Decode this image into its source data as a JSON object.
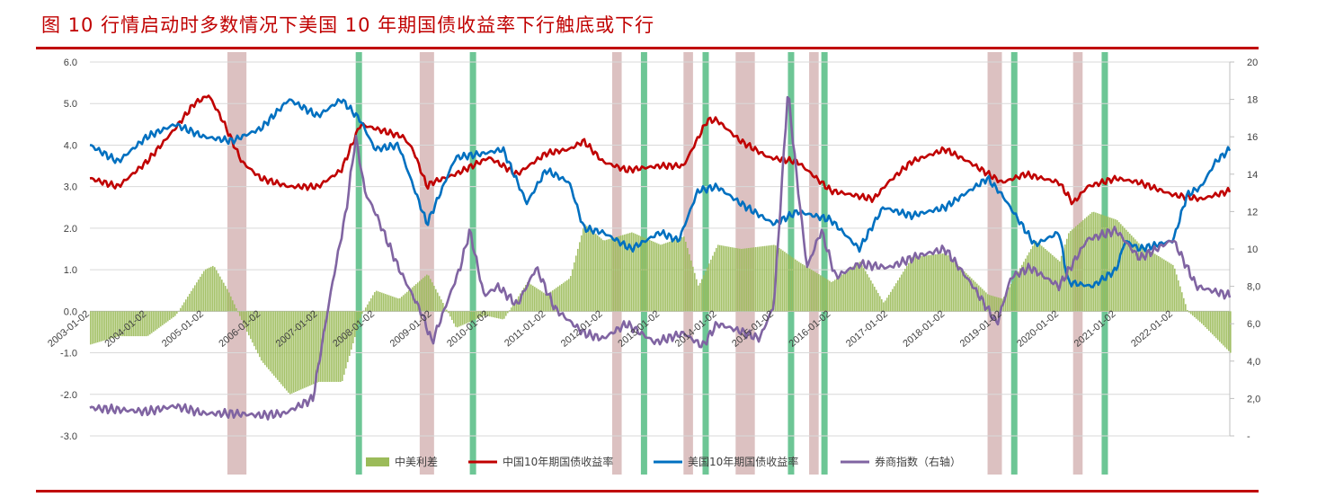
{
  "header": {
    "title": "图 10    行情启动时多数情况下美国 10 年期国债收益率下行触底或下行"
  },
  "colors": {
    "accent_red": "#c00000",
    "spread_fill": "#9bbb59",
    "cn_yield": "#c00000",
    "us_yield": "#0070c0",
    "broker_index": "#8064a2",
    "band_red": "#c9a0a0",
    "band_green": "#3cb371"
  },
  "chart_data": {
    "type": "line",
    "x_type": "date",
    "xlim": [
      "2003-01-02",
      "2022-12-31"
    ],
    "left_axis": {
      "ylim": [
        -3.0,
        6.0
      ],
      "ticks": [
        "6.0",
        "5.0",
        "4.0",
        "3.0",
        "2.0",
        "1.0",
        "0.0",
        "-1.0",
        "-2.0",
        "-3.0"
      ]
    },
    "right_axis": {
      "ylim": [
        0,
        20
      ],
      "ticks": [
        "20",
        "18",
        "16",
        "14",
        "12",
        "10",
        "8,0",
        "6,0",
        "4,0",
        "2,0",
        "-"
      ]
    },
    "x_ticks": [
      "2003-01-02",
      "2004-01-02",
      "2005-01-02",
      "2006-01-02",
      "2007-01-02",
      "2008-01-02",
      "2009-01-02",
      "2010-01-02",
      "2011-01-02",
      "2012-01-02",
      "2013-01-02",
      "2014-01-02",
      "2015-01-02",
      "2016-01-02",
      "2017-01-02",
      "2018-01-02",
      "2019-01-02",
      "2020-01-02",
      "2021-01-02",
      "2022-01-02"
    ],
    "grid": true,
    "legend_position": "bottom",
    "legend": [
      "中美利差",
      "中国10年期国债收益率",
      "美国10年期国债收益率",
      "券商指数（右轴）"
    ],
    "red_bands": [
      [
        "2005-06-01",
        "2005-10-01"
      ],
      [
        "2008-10-15",
        "2009-01-15"
      ],
      [
        "2012-03-01",
        "2012-05-01"
      ],
      [
        "2013-06-01",
        "2013-08-01"
      ],
      [
        "2014-05-01",
        "2014-09-01"
      ],
      [
        "2015-08-15",
        "2015-10-15"
      ],
      [
        "2018-10-01",
        "2019-01-01"
      ],
      [
        "2020-04-01",
        "2020-06-01"
      ]
    ],
    "green_bands": [
      [
        "2007-09-01",
        "2007-11-01"
      ],
      [
        "2009-09-01",
        "2009-11-01"
      ],
      [
        "2012-09-01",
        "2012-11-01"
      ],
      [
        "2013-10-01",
        "2013-12-01"
      ],
      [
        "2015-04-01",
        "2015-06-01"
      ],
      [
        "2015-11-01",
        "2016-01-01"
      ],
      [
        "2019-03-01",
        "2019-05-01"
      ],
      [
        "2020-10-01",
        "2020-12-01"
      ]
    ],
    "series": [
      {
        "name": "中国10年期国债收益率",
        "axis": "left",
        "x": [
          "2003-01-02",
          "2003-07-01",
          "2004-01-02",
          "2004-07-01",
          "2004-11-01",
          "2005-02-01",
          "2005-05-01",
          "2005-09-01",
          "2006-01-02",
          "2006-07-01",
          "2007-01-02",
          "2007-06-01",
          "2007-10-01",
          "2008-01-02",
          "2008-04-01",
          "2008-07-01",
          "2008-09-01",
          "2008-12-01",
          "2009-01-02",
          "2009-06-01",
          "2010-01-02",
          "2010-07-01",
          "2011-01-02",
          "2011-06-01",
          "2011-09-01",
          "2012-01-02",
          "2012-06-01",
          "2013-01-02",
          "2013-06-01",
          "2013-11-01",
          "2014-01-02",
          "2014-06-01",
          "2014-12-01",
          "2015-06-01",
          "2016-01-02",
          "2016-10-01",
          "2017-01-02",
          "2017-06-01",
          "2018-01-02",
          "2018-06-01",
          "2019-01-02",
          "2019-06-01",
          "2020-01-02",
          "2020-04-01",
          "2020-07-01",
          "2021-01-02",
          "2021-06-01",
          "2022-01-02",
          "2022-07-01",
          "2022-12-31"
        ],
        "values": [
          3.2,
          3.0,
          3.6,
          4.4,
          5.0,
          5.2,
          4.6,
          3.6,
          3.2,
          3.0,
          3.0,
          3.4,
          4.5,
          4.4,
          4.3,
          4.2,
          3.9,
          3.0,
          3.1,
          3.3,
          3.7,
          3.3,
          3.8,
          3.9,
          4.1,
          3.6,
          3.4,
          3.5,
          3.5,
          4.6,
          4.6,
          4.1,
          3.7,
          3.6,
          2.9,
          2.7,
          3.1,
          3.6,
          3.9,
          3.6,
          3.1,
          3.3,
          3.1,
          2.6,
          3.0,
          3.2,
          3.1,
          2.8,
          2.7,
          2.9
        ]
      },
      {
        "name": "美国10年期国债收益率",
        "axis": "left",
        "x": [
          "2003-01-02",
          "2003-07-01",
          "2004-01-02",
          "2004-07-01",
          "2005-01-02",
          "2005-07-01",
          "2006-01-02",
          "2006-07-01",
          "2007-01-02",
          "2007-06-01",
          "2007-10-01",
          "2008-01-02",
          "2008-06-01",
          "2008-12-01",
          "2009-06-01",
          "2009-12-01",
          "2010-04-01",
          "2010-09-01",
          "2011-01-02",
          "2011-06-01",
          "2011-09-01",
          "2012-01-02",
          "2012-07-01",
          "2013-01-02",
          "2013-05-01",
          "2013-09-01",
          "2014-01-02",
          "2014-06-01",
          "2015-01-02",
          "2015-06-01",
          "2016-01-02",
          "2016-07-01",
          "2016-12-01",
          "2017-06-01",
          "2018-01-02",
          "2018-10-01",
          "2019-01-02",
          "2019-08-01",
          "2020-01-02",
          "2020-03-01",
          "2020-08-01",
          "2021-01-02",
          "2021-03-01",
          "2021-06-01",
          "2022-01-02",
          "2022-04-01",
          "2022-07-01",
          "2022-10-01",
          "2022-12-31"
        ],
        "values": [
          4.0,
          3.6,
          4.2,
          4.5,
          4.2,
          4.1,
          4.4,
          5.1,
          4.7,
          5.1,
          4.6,
          3.9,
          4.0,
          2.1,
          3.7,
          3.8,
          3.9,
          2.6,
          3.4,
          3.1,
          2.0,
          1.9,
          1.5,
          1.9,
          1.7,
          2.9,
          3.0,
          2.6,
          2.1,
          2.4,
          2.2,
          1.5,
          2.5,
          2.3,
          2.5,
          3.2,
          2.8,
          1.6,
          1.9,
          0.7,
          0.6,
          1.0,
          1.7,
          1.5,
          1.7,
          2.8,
          3.0,
          3.6,
          3.9
        ]
      },
      {
        "name": "中美利差",
        "axis": "left",
        "x": [
          "2003-01-02",
          "2003-07-01",
          "2004-01-02",
          "2004-07-01",
          "2005-01-02",
          "2005-03-01",
          "2005-06-01",
          "2005-10-01",
          "2006-01-02",
          "2006-07-01",
          "2007-01-02",
          "2007-06-01",
          "2007-10-01",
          "2008-01-02",
          "2008-06-01",
          "2008-12-01",
          "2009-06-01",
          "2009-12-01",
          "2010-04-01",
          "2010-09-01",
          "2011-01-02",
          "2011-06-01",
          "2011-09-01",
          "2012-01-02",
          "2012-07-01",
          "2013-01-02",
          "2013-06-01",
          "2013-09-01",
          "2014-01-02",
          "2014-06-01",
          "2015-01-02",
          "2015-06-01",
          "2016-01-02",
          "2016-07-01",
          "2016-12-01",
          "2017-06-01",
          "2018-01-02",
          "2018-10-01",
          "2019-01-02",
          "2019-08-01",
          "2020-01-02",
          "2020-03-01",
          "2020-08-01",
          "2021-01-02",
          "2021-06-01",
          "2022-01-02",
          "2022-04-01",
          "2022-07-01",
          "2022-12-31"
        ],
        "values": [
          -0.8,
          -0.6,
          -0.6,
          -0.1,
          1.0,
          1.1,
          0.5,
          -0.5,
          -1.2,
          -2.0,
          -1.7,
          -1.7,
          -0.1,
          0.5,
          0.3,
          0.9,
          -0.4,
          -0.1,
          -0.2,
          0.7,
          0.4,
          0.8,
          2.1,
          1.7,
          1.9,
          1.6,
          1.8,
          0.6,
          1.6,
          1.5,
          1.6,
          1.2,
          0.7,
          1.2,
          0.2,
          1.3,
          1.4,
          0.4,
          0.3,
          1.7,
          1.2,
          1.9,
          2.4,
          2.2,
          1.6,
          1.1,
          0.0,
          -0.3,
          -1.0
        ]
      },
      {
        "name": "券商指数（右轴）",
        "axis": "right",
        "x": [
          "2003-01-02",
          "2004-01-02",
          "2004-07-01",
          "2005-01-02",
          "2005-07-01",
          "2006-01-02",
          "2006-06-01",
          "2006-12-01",
          "2007-04-01",
          "2007-07-01",
          "2007-09-01",
          "2007-11-01",
          "2008-01-02",
          "2008-06-01",
          "2008-11-01",
          "2009-01-02",
          "2009-07-01",
          "2009-09-01",
          "2009-12-01",
          "2010-03-01",
          "2010-07-01",
          "2010-11-01",
          "2011-03-01",
          "2011-09-01",
          "2012-01-02",
          "2012-06-01",
          "2012-12-01",
          "2013-06-01",
          "2013-10-01",
          "2014-01-02",
          "2014-06-01",
          "2014-10-01",
          "2015-01-02",
          "2015-04-01",
          "2015-06-01",
          "2015-08-01",
          "2015-11-01",
          "2016-02-01",
          "2016-07-01",
          "2017-01-02",
          "2017-07-01",
          "2018-01-02",
          "2018-07-01",
          "2018-12-01",
          "2019-03-01",
          "2019-07-01",
          "2020-01-02",
          "2020-07-01",
          "2021-01-02",
          "2021-06-01",
          "2022-01-02",
          "2022-06-01",
          "2022-12-31"
        ],
        "values": [
          1.5,
          1.3,
          1.6,
          1.2,
          1.2,
          1.1,
          1.2,
          2.0,
          8.0,
          12.0,
          16.0,
          13.0,
          12.0,
          9.0,
          6.5,
          5.0,
          9.0,
          11.0,
          7.5,
          8.0,
          7.0,
          9.0,
          6.8,
          5.5,
          5.2,
          6.0,
          5.0,
          5.5,
          4.8,
          6.0,
          5.6,
          5.2,
          7.0,
          18.5,
          13.5,
          9.0,
          11.0,
          8.5,
          9.2,
          9.0,
          9.6,
          10.0,
          8.0,
          6.0,
          8.5,
          9.0,
          8.0,
          10.5,
          11.0,
          9.5,
          10.5,
          8.0,
          7.5
        ]
      }
    ]
  }
}
